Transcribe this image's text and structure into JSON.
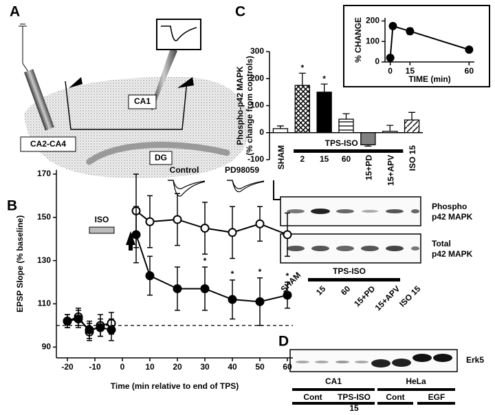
{
  "panel_labels": [
    "A",
    "B",
    "C",
    "D"
  ],
  "panel_a": {
    "regions": [
      "CA2-CA4",
      "CA1",
      "DG"
    ]
  },
  "chart_data": [
    {
      "type": "line",
      "y_label": "EPSP Slope (% baseline)",
      "x_label": "Time (min relative to end of TPS)",
      "x": [
        -20,
        -16,
        -12,
        -8,
        -4,
        0,
        5,
        10,
        20,
        30,
        40,
        50,
        60
      ],
      "series": [
        {
          "name": "Control",
          "color": "#000000",
          "marker": "open",
          "values": [
            102,
            104,
            97,
            100,
            101,
            null,
            153,
            148,
            149,
            145,
            143,
            147,
            142
          ],
          "errors": [
            3,
            4,
            4,
            5,
            5,
            null,
            17,
            12,
            12,
            12,
            12,
            8,
            10
          ]
        },
        {
          "name": "PD98059",
          "color": "#000000",
          "marker": "filled",
          "values": [
            102,
            103,
            98,
            99,
            98,
            null,
            142,
            123,
            117,
            117,
            112,
            111,
            114
          ],
          "errors": [
            3,
            4,
            4,
            4,
            5,
            null,
            13,
            9,
            10,
            10,
            9,
            11,
            6
          ]
        }
      ],
      "xlim": [
        -24,
        62
      ],
      "ylim": [
        85,
        172
      ],
      "xticks": [
        -20,
        -10,
        0,
        10,
        20,
        30,
        40,
        50,
        60
      ],
      "yticks": [
        90,
        110,
        130,
        150,
        170
      ],
      "baseline": 100,
      "treatment": {
        "label": "ISO",
        "start": -12,
        "end": -3
      },
      "significance": {
        "series": 1,
        "label": "*",
        "x": [
          30,
          40,
          50,
          60
        ]
      }
    },
    {
      "type": "bar",
      "y_label": [
        "Phospho-p42 MAPK",
        "(% change from controls)"
      ],
      "categories": [
        "SHAM",
        "2",
        "15",
        "60",
        "15+PD",
        "15+APV",
        "ISO 15"
      ],
      "values": [
        15,
        175,
        150,
        50,
        -45,
        5,
        47
      ],
      "errors": [
        10,
        45,
        30,
        20,
        5,
        22,
        28
      ],
      "patterns": [
        "none",
        "crosshatch",
        "solid",
        "hlines",
        "gray",
        "hlines",
        "diagonal"
      ],
      "ylim": [
        -100,
        300
      ],
      "yticks": [
        -100,
        0,
        100,
        200,
        300
      ],
      "group": {
        "label": "TPS-ISO",
        "from": 1,
        "to": 5
      },
      "significance": {
        "label": "*",
        "categories": [
          1,
          2
        ]
      }
    },
    {
      "type": "line",
      "y_label": "% CHANGE",
      "x_label": "TIME (min)",
      "x": [
        0,
        2,
        15,
        60
      ],
      "series": [
        {
          "color": "#000000",
          "marker": "filled",
          "values": [
            20,
            175,
            150,
            60
          ],
          "errors": [
            5,
            10,
            15,
            12
          ]
        }
      ],
      "xlim": [
        -4,
        64
      ],
      "ylim": [
        0,
        215
      ],
      "xticks": [
        0,
        15,
        60
      ],
      "yticks": [
        0,
        100,
        200
      ]
    }
  ],
  "blot_c": {
    "rows": [
      [
        "Phospho",
        "p42 MAPK"
      ],
      [
        "Total",
        "p42 MAPK"
      ]
    ],
    "lanes": [
      "SHAM",
      "15",
      "60",
      "15+PD",
      "15+APV",
      "ISO 15"
    ],
    "group": "TPS-ISO"
  },
  "blot_d": {
    "protein": "Erk5",
    "sources": [
      "CA1",
      "HeLa"
    ],
    "conditions": [
      [
        "Cont"
      ],
      [
        "TPS-ISO",
        "15"
      ],
      [
        "Cont"
      ],
      [
        "EGF"
      ]
    ]
  }
}
